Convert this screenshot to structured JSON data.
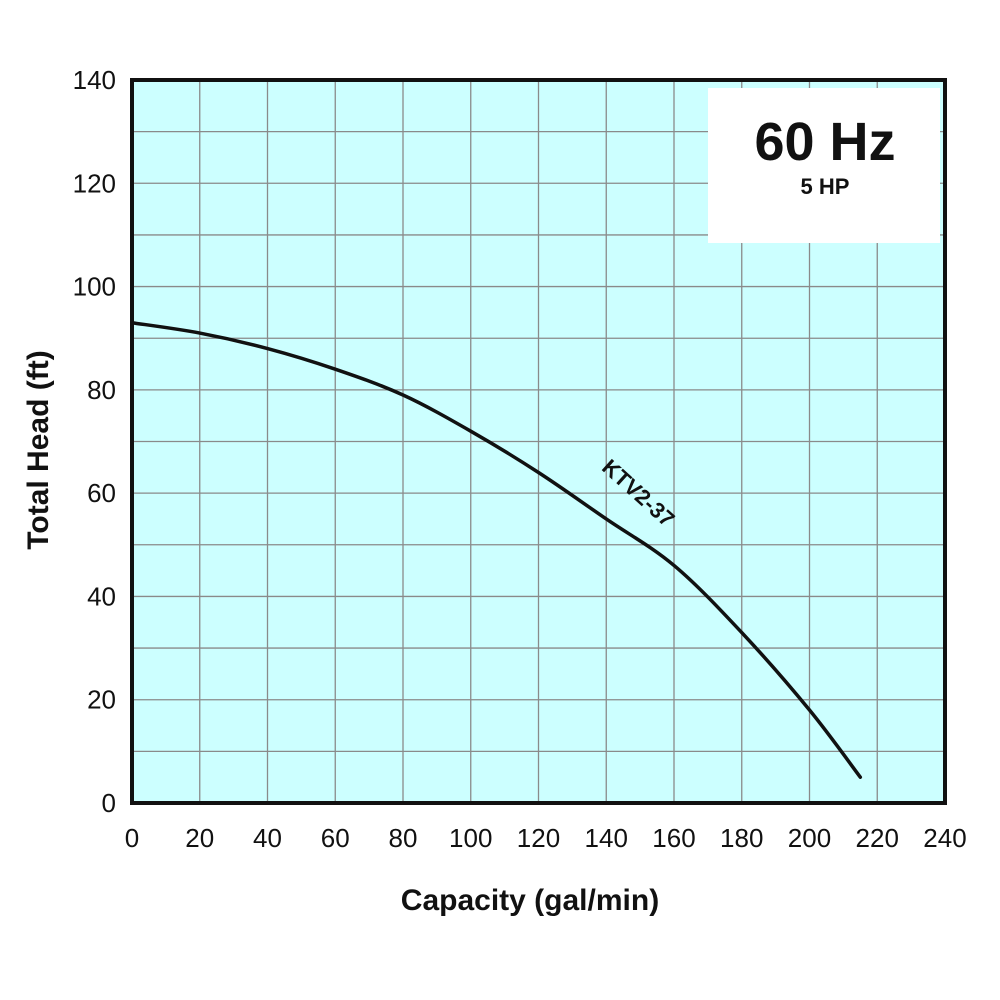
{
  "chart_data": {
    "type": "line",
    "title": "60 Hz",
    "subtitle": "5 HP",
    "xlabel": "Capacity (gal/min)",
    "ylabel": "Total Head (ft)",
    "xlim": [
      0,
      240
    ],
    "ylim": [
      0,
      140
    ],
    "x_ticks": [
      0,
      20,
      40,
      60,
      80,
      100,
      120,
      140,
      160,
      180,
      200,
      220,
      240
    ],
    "y_ticks": [
      0,
      20,
      40,
      60,
      80,
      100,
      120,
      140
    ],
    "grid": true,
    "minor_grid_y_step": 10,
    "series": [
      {
        "name": "KTV2-37",
        "x": [
          0,
          20,
          40,
          60,
          80,
          100,
          120,
          140,
          160,
          180,
          200,
          215
        ],
        "y": [
          93,
          91,
          88,
          84,
          79,
          72,
          64,
          55,
          46,
          33,
          18,
          5
        ]
      }
    ],
    "colors": {
      "plot_background": "#ccffff",
      "grid": "#8a8a8a",
      "frame": "#111111",
      "curve": "#111111"
    }
  }
}
